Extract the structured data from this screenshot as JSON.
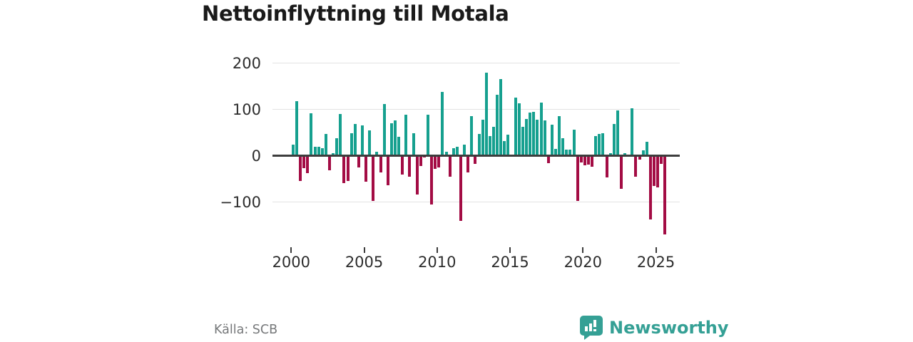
{
  "title": "Nettoinflyttning till Motala",
  "source": "Källa: SCB",
  "branding": {
    "name": "Newsworthy",
    "icon": "newsworthy-bubble-chart-icon",
    "color": "#35a095"
  },
  "chart_data": {
    "type": "bar",
    "title": "Nettoinflyttning till Motala",
    "frequency": "quarterly",
    "start": "2000 Q1",
    "end": "2025 Q3",
    "values": [
      24,
      118,
      -55,
      -27,
      -38,
      92,
      19,
      20,
      16,
      47,
      -32,
      5,
      38,
      90,
      -59,
      -54,
      48,
      68,
      -25,
      66,
      -56,
      55,
      -97,
      8,
      -36,
      112,
      -64,
      70,
      76,
      41,
      -40,
      88,
      -46,
      48,
      -84,
      -23,
      -4,
      89,
      -106,
      -28,
      -25,
      137,
      8,
      -46,
      16,
      19,
      -141,
      24,
      -36,
      85,
      -17,
      47,
      78,
      179,
      42,
      62,
      132,
      165,
      32,
      46,
      0,
      125,
      113,
      62,
      79,
      93,
      95,
      78,
      114,
      76,
      -16,
      67,
      14,
      86,
      37,
      13,
      13,
      56,
      -97,
      -15,
      -21,
      -19,
      -24,
      42,
      47,
      48,
      -47,
      6,
      69,
      98,
      -71,
      5,
      2,
      103,
      -46,
      -8,
      11,
      30,
      -137,
      -65,
      -68,
      -17,
      -170
    ],
    "x_axis": {
      "ticks": [
        {
          "label": "2000",
          "year": 2000
        },
        {
          "label": "2005",
          "year": 2005
        },
        {
          "label": "2010",
          "year": 2010
        },
        {
          "label": "2015",
          "year": 2015
        },
        {
          "label": "2020",
          "year": 2020
        },
        {
          "label": "2025",
          "year": 2025
        }
      ]
    },
    "y_axis": {
      "ticks": [
        {
          "label": "200",
          "value": 200
        },
        {
          "label": "100",
          "value": 100
        },
        {
          "label": "0",
          "value": 0
        },
        {
          "label": "−100",
          "value": -100
        }
      ]
    },
    "ylim": [
      -180,
      210
    ],
    "grid": true,
    "legend": false,
    "colors": {
      "positive": "#16a08f",
      "negative": "#a30c44"
    }
  }
}
